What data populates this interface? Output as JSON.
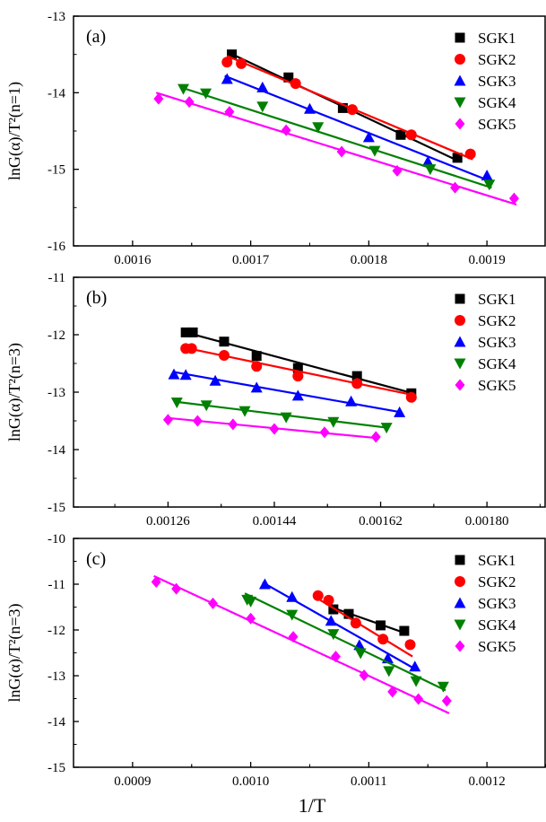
{
  "figure": {
    "xlabel": "1/T"
  },
  "chart_data": [
    {
      "type": "scatter",
      "panel_label": "(a)",
      "ylabel": "lnG(α)/T²(n=1)",
      "xlim": [
        0.00155,
        0.00195
      ],
      "ylim": [
        -16,
        -13
      ],
      "xticks": [
        0.0016,
        0.0017,
        0.0018,
        0.0019
      ],
      "xtick_labels": [
        "0.0016",
        "0.0017",
        "0.0018",
        "0.0019"
      ],
      "yticks": [
        -16,
        -15,
        -14,
        -13
      ],
      "ytick_labels": [
        "-16",
        "-15",
        "-14",
        "-13"
      ],
      "grid": false,
      "legend_position": "top-right",
      "series": [
        {
          "name": "SGK1",
          "marker": "square",
          "color": "#000000",
          "x": [
            0.001684,
            0.001732,
            0.001778,
            0.001827,
            0.001875
          ],
          "y": [
            -13.5,
            -13.8,
            -14.2,
            -14.55,
            -14.85
          ],
          "fit": [
            [
              0.001682,
              -13.48
            ],
            [
              0.001877,
              -14.9
            ]
          ]
        },
        {
          "name": "SGK2",
          "marker": "circle",
          "color": "#ff0000",
          "x": [
            0.00168,
            0.001692,
            0.001738,
            0.001786,
            0.001836,
            0.001886
          ],
          "y": [
            -13.6,
            -13.62,
            -13.88,
            -14.22,
            -14.55,
            -14.8
          ],
          "fit": [
            [
              0.00168,
              -13.52
            ],
            [
              0.001888,
              -14.87
            ]
          ]
        },
        {
          "name": "SGK3",
          "marker": "triangle-up",
          "color": "#0000ff",
          "x": [
            0.00168,
            0.00171,
            0.00175,
            0.0018,
            0.00185,
            0.0019
          ],
          "y": [
            -13.82,
            -13.93,
            -14.21,
            -14.58,
            -14.9,
            -15.08
          ],
          "fit": [
            [
              0.001678,
              -13.78
            ],
            [
              0.001902,
              -15.15
            ]
          ]
        },
        {
          "name": "SGK4",
          "marker": "triangle-down",
          "color": "#008000",
          "x": [
            0.001643,
            0.001662,
            0.00171,
            0.001757,
            0.001805,
            0.001852,
            0.001902
          ],
          "y": [
            -13.95,
            -14.01,
            -14.18,
            -14.45,
            -14.76,
            -15.0,
            -15.2
          ],
          "fit": [
            [
              0.001641,
              -13.93
            ],
            [
              0.001904,
              -15.24
            ]
          ]
        },
        {
          "name": "SGK5",
          "marker": "diamond",
          "color": "#ff00ff",
          "x": [
            0.001622,
            0.001648,
            0.001682,
            0.00173,
            0.001777,
            0.001824,
            0.001873,
            0.001923
          ],
          "y": [
            -14.08,
            -14.12,
            -14.25,
            -14.49,
            -14.77,
            -15.02,
            -15.24,
            -15.38
          ],
          "fit": [
            [
              0.00162,
              -14.0
            ],
            [
              0.001925,
              -15.46
            ]
          ]
        }
      ]
    },
    {
      "type": "scatter",
      "panel_label": "(b)",
      "ylabel": "lnG(α)/T²(n=3)",
      "xlim": [
        0.0011,
        0.0019
      ],
      "ylim": [
        -15,
        -11
      ],
      "xticks": [
        0.00126,
        0.00144,
        0.00162,
        0.0018
      ],
      "xtick_labels": [
        "0.00126",
        "0.00144",
        "0.00162",
        "0.00180"
      ],
      "yticks": [
        -15,
        -14,
        -13,
        -12,
        -11
      ],
      "ytick_labels": [
        "-15",
        "-14",
        "-13",
        "-12",
        "-11"
      ],
      "grid": false,
      "legend_position": "top-right",
      "series": [
        {
          "name": "SGK1",
          "marker": "square",
          "color": "#000000",
          "x": [
            0.00129,
            0.001302,
            0.001355,
            0.00141,
            0.00148,
            0.00158,
            0.001672
          ],
          "y": [
            -11.96,
            -11.96,
            -12.12,
            -12.37,
            -12.58,
            -12.72,
            -13.02
          ],
          "fit": [
            [
              0.00129,
              -11.96
            ],
            [
              0.001675,
              -13.02
            ]
          ]
        },
        {
          "name": "SGK2",
          "marker": "circle",
          "color": "#ff0000",
          "x": [
            0.00129,
            0.0013,
            0.001355,
            0.00141,
            0.00148,
            0.00158,
            0.001672
          ],
          "y": [
            -12.24,
            -12.24,
            -12.36,
            -12.55,
            -12.72,
            -12.85,
            -13.09
          ],
          "fit": [
            [
              0.00129,
              -12.23
            ],
            [
              0.001675,
              -13.05
            ]
          ]
        },
        {
          "name": "SGK3",
          "marker": "triangle-up",
          "color": "#0000ff",
          "x": [
            0.00127,
            0.00129,
            0.00134,
            0.00141,
            0.00148,
            0.00157,
            0.001652
          ],
          "y": [
            -12.69,
            -12.7,
            -12.8,
            -12.92,
            -13.06,
            -13.16,
            -13.35
          ],
          "fit": [
            [
              0.00127,
              -12.65
            ],
            [
              0.001655,
              -13.35
            ]
          ]
        },
        {
          "name": "SGK4",
          "marker": "triangle-down",
          "color": "#008000",
          "x": [
            0.001275,
            0.001325,
            0.00139,
            0.00146,
            0.00154,
            0.00163
          ],
          "y": [
            -13.18,
            -13.23,
            -13.33,
            -13.44,
            -13.52,
            -13.62
          ],
          "fit": [
            [
              0.001275,
              -13.17
            ],
            [
              0.001632,
              -13.62
            ]
          ]
        },
        {
          "name": "SGK5",
          "marker": "diamond",
          "color": "#ff00ff",
          "x": [
            0.00126,
            0.00131,
            0.00137,
            0.00144,
            0.001525,
            0.001612
          ],
          "y": [
            -13.48,
            -13.5,
            -13.56,
            -13.64,
            -13.7,
            -13.78
          ],
          "fit": [
            [
              0.00126,
              -13.45
            ],
            [
              0.001614,
              -13.8
            ]
          ]
        }
      ]
    },
    {
      "type": "scatter",
      "panel_label": "(c)",
      "ylabel": "lnG(α)/T²(n=3)",
      "xlim": [
        0.00085,
        0.00125
      ],
      "ylim": [
        -15,
        -10
      ],
      "xticks": [
        0.0009,
        0.001,
        0.0011,
        0.0012
      ],
      "xtick_labels": [
        "0.0009",
        "0.0010",
        "0.0011",
        "0.0012"
      ],
      "yticks": [
        -15,
        -14,
        -13,
        -12,
        -11,
        -10
      ],
      "ytick_labels": [
        "-15",
        "-14",
        "-13",
        "-12",
        "-11",
        "-10"
      ],
      "grid": false,
      "legend_position": "top-right",
      "series": [
        {
          "name": "SGK1",
          "marker": "square",
          "color": "#000000",
          "x": [
            0.00107,
            0.001083,
            0.00111,
            0.00113
          ],
          "y": [
            -11.55,
            -11.65,
            -11.9,
            -12.02
          ],
          "fit": [
            [
              0.001068,
              -11.5
            ],
            [
              0.001132,
              -12.08
            ]
          ]
        },
        {
          "name": "SGK2",
          "marker": "circle",
          "color": "#ff0000",
          "x": [
            0.001057,
            0.001066,
            0.001089,
            0.001112,
            0.001135
          ],
          "y": [
            -11.25,
            -11.35,
            -11.85,
            -12.2,
            -12.32
          ],
          "fit": [
            [
              0.001059,
              -11.35
            ],
            [
              0.001137,
              -12.58
            ]
          ]
        },
        {
          "name": "SGK3",
          "marker": "triangle-up",
          "color": "#0000ff",
          "x": [
            0.001012,
            0.001035,
            0.001068,
            0.001092,
            0.001116,
            0.001139
          ],
          "y": [
            -11.0,
            -11.28,
            -11.8,
            -12.33,
            -12.62,
            -12.8
          ],
          "fit": [
            [
              0.00101,
              -10.96
            ],
            [
              0.001141,
              -12.88
            ]
          ]
        },
        {
          "name": "SGK4",
          "marker": "triangle-down",
          "color": "#008000",
          "x": [
            0.000997,
            0.001,
            0.001035,
            0.00107,
            0.001093,
            0.001117,
            0.00114,
            0.001163
          ],
          "y": [
            -11.34,
            -11.38,
            -11.67,
            -12.09,
            -12.51,
            -12.9,
            -13.12,
            -13.24
          ],
          "fit": [
            [
              0.000995,
              -11.2
            ],
            [
              0.001165,
              -13.32
            ]
          ]
        },
        {
          "name": "SGK5",
          "marker": "diamond",
          "color": "#ff00ff",
          "x": [
            0.00092,
            0.000937,
            0.000968,
            0.001,
            0.001036,
            0.001072,
            0.001096,
            0.00112,
            0.001142,
            0.001166
          ],
          "y": [
            -10.95,
            -11.1,
            -11.42,
            -11.75,
            -12.15,
            -12.58,
            -12.99,
            -13.35,
            -13.51,
            -13.55
          ],
          "fit": [
            [
              0.000918,
              -10.82
            ],
            [
              0.001168,
              -13.82
            ]
          ]
        }
      ]
    }
  ]
}
